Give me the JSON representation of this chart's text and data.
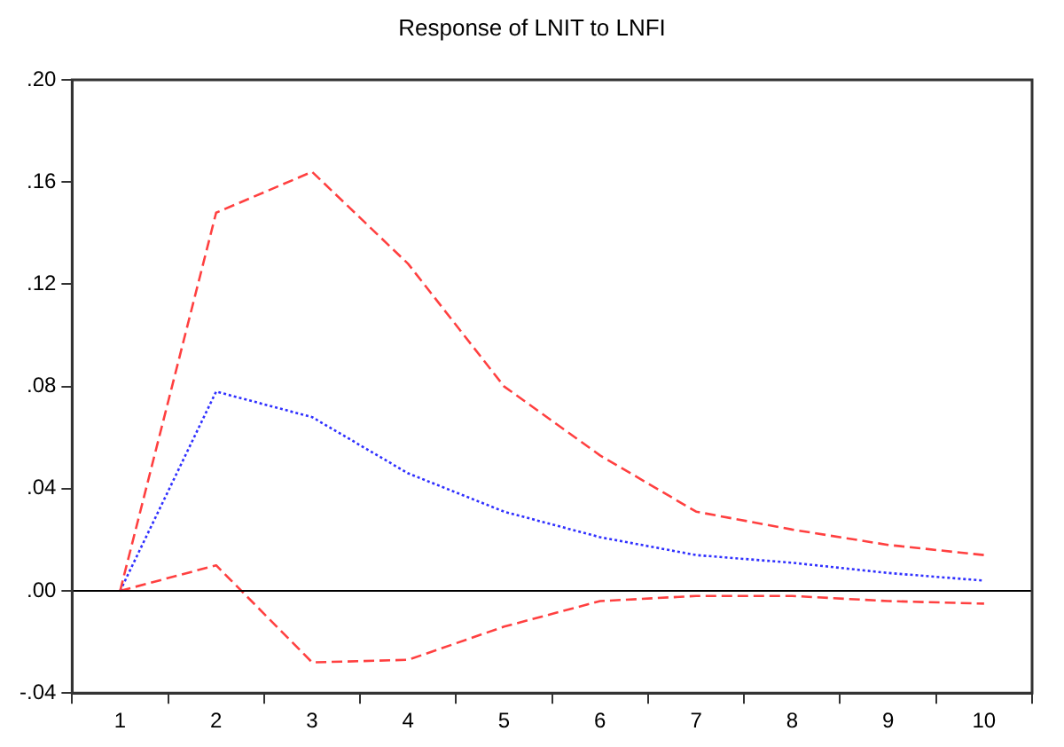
{
  "chart_data": {
    "type": "line",
    "title": "Response of LNIT to LNFI",
    "categories": [
      "1",
      "2",
      "3",
      "4",
      "5",
      "6",
      "7",
      "8",
      "9",
      "10"
    ],
    "series": [
      {
        "color": "#ff4040",
        "line_style": "dashed",
        "values": [
          0,
          0.148,
          0.164,
          0.128,
          0.08,
          0.053,
          0.031,
          0.024,
          0.018,
          0.014
        ]
      },
      {
        "color": "#3030ff",
        "line_style": "dotted",
        "values": [
          0,
          0.078,
          0.068,
          0.046,
          0.031,
          0.021,
          0.014,
          0.011,
          0.007,
          0.004
        ]
      },
      {
        "color": "#ff4040",
        "line_style": "dashed",
        "values": [
          0,
          0.01,
          -0.028,
          -0.027,
          -0.014,
          -0.004,
          -0.002,
          -0.002,
          -0.004,
          -0.005
        ]
      }
    ],
    "ylim": [
      -0.04,
      0.2
    ],
    "yticks": [
      {
        "value": -0.04,
        "label": "-.04"
      },
      {
        "value": 0,
        "label": ".00"
      },
      {
        "value": 0.04,
        "label": ".04"
      },
      {
        "value": 0.08,
        "label": ".08"
      },
      {
        "value": 0.12,
        "label": ".12"
      },
      {
        "value": 0.16,
        "label": ".16"
      },
      {
        "value": 0.2,
        "label": ".20"
      }
    ],
    "ref_lines": [
      {
        "axis": "y",
        "value": 0,
        "color": "#000000"
      }
    ],
    "grid": false,
    "legend": false,
    "marker": "none"
  }
}
